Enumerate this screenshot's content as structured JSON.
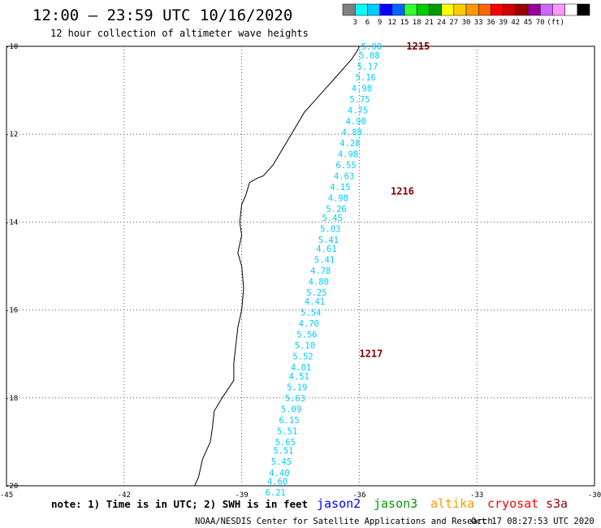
{
  "header": {
    "title": "12:00 — 23:59 UTC 10/16/2020",
    "subtitle": "12 hour collection of altimeter wave heights"
  },
  "legend": {
    "colors": [
      "#808080",
      "#00ffff",
      "#00ccff",
      "#0000ff",
      "#0066ff",
      "#33ff33",
      "#00cc00",
      "#009900",
      "#ffff00",
      "#ffcc00",
      "#ff9900",
      "#ff6600",
      "#ff0000",
      "#cc0000",
      "#990000",
      "#990099",
      "#cc66ff",
      "#ff99ff",
      "#ffffff",
      "#000000"
    ],
    "ticks": [
      "3",
      "6",
      "9",
      "12",
      "15",
      "18",
      "21",
      "24",
      "27",
      "30",
      "33",
      "36",
      "39",
      "42",
      "45",
      "70"
    ],
    "unit": "(ft)"
  },
  "map": {
    "lon_range": [
      -45,
      -30
    ],
    "lat_range": [
      -20,
      -10
    ],
    "lon_ticks": [
      "-45",
      "-42",
      "-39",
      "-36",
      "-33",
      "-30"
    ],
    "lat_ticks": [
      "-10",
      "-12",
      "-14",
      "-16",
      "-18",
      "-20"
    ],
    "wave_color": "#00ccff",
    "pass_color": "#800000",
    "coastline": [
      [
        -36.0,
        -10.0
      ],
      [
        -36.05,
        -10.1
      ],
      [
        -36.2,
        -10.3
      ],
      [
        -36.5,
        -10.6
      ],
      [
        -36.9,
        -11.0
      ],
      [
        -37.2,
        -11.3
      ],
      [
        -37.4,
        -11.5
      ],
      [
        -37.6,
        -11.8
      ],
      [
        -37.8,
        -12.1
      ],
      [
        -38.0,
        -12.4
      ],
      [
        -38.2,
        -12.7
      ],
      [
        -38.45,
        -12.95
      ],
      [
        -38.6,
        -13.0
      ],
      [
        -38.8,
        -13.1
      ],
      [
        -38.9,
        -13.4
      ],
      [
        -39.0,
        -13.6
      ],
      [
        -39.05,
        -14.0
      ],
      [
        -39.0,
        -14.3
      ],
      [
        -39.1,
        -14.7
      ],
      [
        -39.0,
        -15.0
      ],
      [
        -38.95,
        -15.5
      ],
      [
        -39.0,
        -16.0
      ],
      [
        -39.1,
        -16.4
      ],
      [
        -39.15,
        -16.8
      ],
      [
        -39.2,
        -17.2
      ],
      [
        -39.2,
        -17.6
      ],
      [
        -39.5,
        -18.0
      ],
      [
        -39.7,
        -18.3
      ],
      [
        -39.75,
        -18.7
      ],
      [
        -39.8,
        -19.0
      ],
      [
        -40.0,
        -19.4
      ],
      [
        -40.1,
        -19.8
      ],
      [
        -40.2,
        -20.0
      ]
    ],
    "passes": [
      {
        "label": "1215",
        "lon": -34.8,
        "lat": -10.0
      },
      {
        "label": "1216",
        "lon": -35.2,
        "lat": -13.3
      },
      {
        "label": "1217",
        "lon": -36.0,
        "lat": -17.0
      }
    ],
    "wave_heights": [
      {
        "value": "5.00",
        "lon": -35.95,
        "lat": -10.0
      },
      {
        "value": "5.08",
        "lon": -36.0,
        "lat": -10.2
      },
      {
        "value": "5.17",
        "lon": -36.05,
        "lat": -10.45
      },
      {
        "value": "5.16",
        "lon": -36.1,
        "lat": -10.7
      },
      {
        "value": "4.98",
        "lon": -36.2,
        "lat": -10.95
      },
      {
        "value": "5.75",
        "lon": -36.25,
        "lat": -11.2
      },
      {
        "value": "4.75",
        "lon": -36.3,
        "lat": -11.45
      },
      {
        "value": "4.90",
        "lon": -36.35,
        "lat": -11.7
      },
      {
        "value": "4.89",
        "lon": -36.45,
        "lat": -11.95
      },
      {
        "value": "4.28",
        "lon": -36.5,
        "lat": -12.2
      },
      {
        "value": "4.98",
        "lon": -36.55,
        "lat": -12.45
      },
      {
        "value": "6.55",
        "lon": -36.6,
        "lat": -12.7
      },
      {
        "value": "4.63",
        "lon": -36.65,
        "lat": -12.95
      },
      {
        "value": "4.15",
        "lon": -36.75,
        "lat": -13.2
      },
      {
        "value": "4.98",
        "lon": -36.8,
        "lat": -13.45
      },
      {
        "value": "5.26",
        "lon": -36.85,
        "lat": -13.7
      },
      {
        "value": "5.45",
        "lon": -36.95,
        "lat": -13.9
      },
      {
        "value": "5.03",
        "lon": -37.0,
        "lat": -14.15
      },
      {
        "value": "5.41",
        "lon": -37.05,
        "lat": -14.4
      },
      {
        "value": "4.61",
        "lon": -37.1,
        "lat": -14.6
      },
      {
        "value": "5.41",
        "lon": -37.15,
        "lat": -14.85
      },
      {
        "value": "4.78",
        "lon": -37.25,
        "lat": -15.1
      },
      {
        "value": "4.80",
        "lon": -37.3,
        "lat": -15.35
      },
      {
        "value": "5.25",
        "lon": -37.35,
        "lat": -15.6
      },
      {
        "value": "4.41",
        "lon": -37.4,
        "lat": -15.8
      },
      {
        "value": "5.54",
        "lon": -37.5,
        "lat": -16.05
      },
      {
        "value": "4.70",
        "lon": -37.55,
        "lat": -16.3
      },
      {
        "value": "5.56",
        "lon": -37.6,
        "lat": -16.55
      },
      {
        "value": "5.10",
        "lon": -37.65,
        "lat": -16.8
      },
      {
        "value": "5.52",
        "lon": -37.7,
        "lat": -17.05
      },
      {
        "value": "4.01",
        "lon": -37.75,
        "lat": -17.3
      },
      {
        "value": "4.51",
        "lon": -37.8,
        "lat": -17.5
      },
      {
        "value": "5.19",
        "lon": -37.85,
        "lat": -17.75
      },
      {
        "value": "5.63",
        "lon": -37.9,
        "lat": -18.0
      },
      {
        "value": "5.09",
        "lon": -38.0,
        "lat": -18.25
      },
      {
        "value": "6.15",
        "lon": -38.05,
        "lat": -18.5
      },
      {
        "value": "5.51",
        "lon": -38.1,
        "lat": -18.75
      },
      {
        "value": "5.65",
        "lon": -38.15,
        "lat": -19.0
      },
      {
        "value": "5.51",
        "lon": -38.2,
        "lat": -19.2
      },
      {
        "value": "5.45",
        "lon": -38.25,
        "lat": -19.45
      },
      {
        "value": "4.40",
        "lon": -38.3,
        "lat": -19.7
      },
      {
        "value": "4.60",
        "lon": -38.35,
        "lat": -19.9
      },
      {
        "value": "6.21",
        "lon": -38.4,
        "lat": -20.15
      }
    ]
  },
  "footer": {
    "note": "note: 1) Time is in UTC; 2) SWH is in feet",
    "satellites": [
      {
        "name": "jason2",
        "color": "#0000ff"
      },
      {
        "name": "jason3",
        "color": "#009900"
      },
      {
        "name": "altika",
        "color": "#ff9900"
      },
      {
        "name": "cryosat",
        "color": "#ff0000"
      },
      {
        "name": "s3a",
        "color": "#990000"
      }
    ],
    "credit": "NOAA/NESDIS Center for Satellite Applications and Research",
    "timestamp": "Oct 17 08:27:53 UTC 2020"
  }
}
